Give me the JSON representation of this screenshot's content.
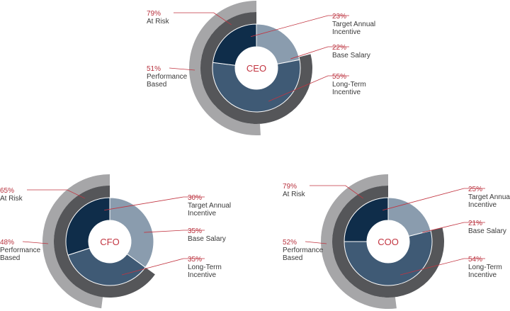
{
  "colors": {
    "target_annual": "#0f2d4a",
    "base_salary": "#8a9cae",
    "long_term": "#3f5a75",
    "at_risk_ring": "#555659",
    "performance_ring": "#a6a6a8",
    "pct_text": "#b8333f",
    "label_text": "#3a3a3a",
    "leader": "#c23440",
    "center_text": "#c23440"
  },
  "chart_data": [
    {
      "type": "pie",
      "title": "CEO",
      "slices": [
        {
          "name": "Target Annual Incentive",
          "value": 23,
          "label_pct": "23%",
          "label_lines": [
            "Target Annual",
            "Incentive"
          ]
        },
        {
          "name": "Base Salary",
          "value": 22,
          "label_pct": "22%",
          "label_lines": [
            "Base Salary"
          ]
        },
        {
          "name": "Long-Term Incentive",
          "value": 55,
          "label_pct": "55%",
          "label_lines": [
            "Long-Term",
            "Incentive"
          ]
        }
      ],
      "rings": [
        {
          "name": "At Risk",
          "value": 79,
          "label_pct": "79%",
          "label_lines": [
            "At Risk"
          ]
        },
        {
          "name": "Performance Based",
          "value": 51,
          "label_pct": "51%",
          "label_lines": [
            "Performance",
            "Based"
          ]
        }
      ]
    },
    {
      "type": "pie",
      "title": "CFO",
      "slices": [
        {
          "name": "Target Annual Incentive",
          "value": 30,
          "label_pct": "30%",
          "label_lines": [
            "Target Annual",
            "Incentive"
          ]
        },
        {
          "name": "Base Salary",
          "value": 35,
          "label_pct": "35%",
          "label_lines": [
            "Base Salary"
          ]
        },
        {
          "name": "Long-Term Incentive",
          "value": 35,
          "label_pct": "35%",
          "label_lines": [
            "Long-Term",
            "Incentive"
          ]
        }
      ],
      "rings": [
        {
          "name": "At Risk",
          "value": 65,
          "label_pct": "65%",
          "label_lines": [
            "At Risk"
          ]
        },
        {
          "name": "Performance Based",
          "value": 48,
          "label_pct": "48%",
          "label_lines": [
            "Performance",
            "Based"
          ]
        }
      ]
    },
    {
      "type": "pie",
      "title": "COO",
      "slices": [
        {
          "name": "Target Annual Incentive",
          "value": 25,
          "label_pct": "25%",
          "label_lines": [
            "Target Annual",
            "Incentive"
          ]
        },
        {
          "name": "Base Salary",
          "value": 21,
          "label_pct": "21%",
          "label_lines": [
            "Base Salary"
          ]
        },
        {
          "name": "Long-Term Incentive",
          "value": 54,
          "label_pct": "54%",
          "label_lines": [
            "Long-Term",
            "Incentive"
          ]
        }
      ],
      "rings": [
        {
          "name": "At Risk",
          "value": 79,
          "label_pct": "79%",
          "label_lines": [
            "At Risk"
          ]
        },
        {
          "name": "Performance Based",
          "value": 52,
          "label_pct": "52%",
          "label_lines": [
            "Performance",
            "Based"
          ]
        }
      ]
    }
  ]
}
